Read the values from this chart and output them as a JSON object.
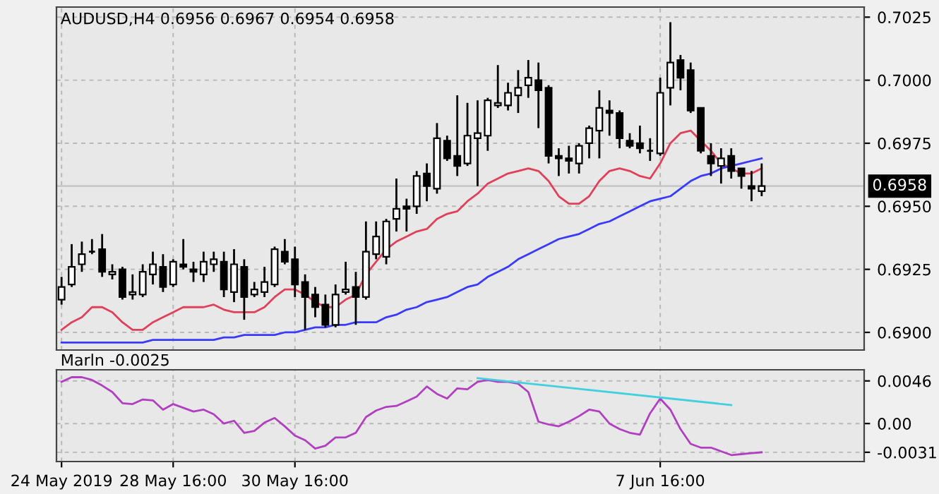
{
  "chart_data": [
    {
      "type": "candlestick",
      "title": "AUDUSD,H4 0.6956 0.6967 0.6954 0.6958",
      "categories": [
        null,
        null,
        null,
        null,
        null,
        null,
        null,
        null,
        null,
        null,
        null,
        null,
        null,
        null,
        null,
        null,
        null,
        null,
        null,
        null,
        null,
        null,
        null,
        null,
        null,
        null,
        null,
        null,
        null,
        null,
        null,
        null,
        null,
        null,
        null,
        null,
        null,
        null,
        null,
        null,
        null,
        null,
        null,
        null,
        null,
        null,
        null,
        null,
        null,
        null,
        null,
        null,
        null,
        null,
        null,
        null,
        null,
        null,
        null,
        null,
        null,
        null,
        null,
        null,
        null,
        null,
        null,
        null,
        null,
        null
      ],
      "ohlc": [
        [
          0.6913,
          0.6922,
          0.6911,
          0.6918
        ],
        [
          0.6919,
          0.6935,
          0.6918,
          0.6926
        ],
        [
          0.6927,
          0.6936,
          0.6924,
          0.6931
        ],
        [
          0.6932,
          0.6937,
          0.6931,
          0.6932
        ],
        [
          0.6933,
          0.6939,
          0.6922,
          0.6924
        ],
        [
          0.6923,
          0.6927,
          0.6921,
          0.6924
        ],
        [
          0.6925,
          0.6926,
          0.6913,
          0.6914
        ],
        [
          0.6915,
          0.6923,
          0.6913,
          0.6916
        ],
        [
          0.6915,
          0.6927,
          0.6914,
          0.6924
        ],
        [
          0.6923,
          0.6932,
          0.6919,
          0.6927
        ],
        [
          0.6926,
          0.6931,
          0.6916,
          0.6918
        ],
        [
          0.6919,
          0.6929,
          0.6918,
          0.6928
        ],
        [
          0.6927,
          0.6937,
          0.6925,
          0.6926
        ],
        [
          0.6925,
          0.6928,
          0.692,
          0.6924
        ],
        [
          0.6923,
          0.6932,
          0.692,
          0.6928
        ],
        [
          0.6927,
          0.6932,
          0.6924,
          0.6929
        ],
        [
          0.6928,
          0.6932,
          0.6914,
          0.6917
        ],
        [
          0.6916,
          0.6933,
          0.6912,
          0.6927
        ],
        [
          0.6926,
          0.6929,
          0.6905,
          0.6914
        ],
        [
          0.6915,
          0.692,
          0.6914,
          0.6917
        ],
        [
          0.6916,
          0.6926,
          0.6914,
          0.692
        ],
        [
          0.6919,
          0.6934,
          0.6918,
          0.6933
        ],
        [
          0.6932,
          0.6937,
          0.6927,
          0.6928
        ],
        [
          0.6929,
          0.6934,
          0.6914,
          0.6919
        ],
        [
          0.692,
          0.6923,
          0.6901,
          0.6914
        ],
        [
          0.6915,
          0.6918,
          0.6906,
          0.691
        ],
        [
          0.6911,
          0.6915,
          0.6902,
          0.6903
        ],
        [
          0.6903,
          0.6919,
          0.6902,
          0.6915
        ],
        [
          0.6916,
          0.6928,
          0.6915,
          0.6917
        ],
        [
          0.6918,
          0.6924,
          0.6903,
          0.6914
        ],
        [
          0.6914,
          0.6944,
          0.6913,
          0.6932
        ],
        [
          0.6931,
          0.6944,
          0.6929,
          0.6938
        ],
        [
          0.693,
          0.6945,
          0.6927,
          0.6944
        ],
        [
          0.6945,
          0.6961,
          0.694,
          0.6949
        ],
        [
          0.695,
          0.6953,
          0.694,
          0.6949
        ],
        [
          0.695,
          0.6964,
          0.6947,
          0.6962
        ],
        [
          0.6963,
          0.6967,
          0.6952,
          0.6958
        ],
        [
          0.6957,
          0.6983,
          0.6955,
          0.6977
        ],
        [
          0.6976,
          0.6978,
          0.6968,
          0.6969
        ],
        [
          0.697,
          0.6994,
          0.6962,
          0.6966
        ],
        [
          0.6967,
          0.6991,
          0.6966,
          0.6978
        ],
        [
          0.6977,
          0.6992,
          0.6958,
          0.6979
        ],
        [
          0.6978,
          0.6993,
          0.6972,
          0.6992
        ],
        [
          0.699,
          0.7006,
          0.6989,
          0.6991
        ],
        [
          0.699,
          0.6999,
          0.6988,
          0.6995
        ],
        [
          0.6994,
          0.7004,
          0.6987,
          0.6997
        ],
        [
          0.6998,
          0.7008,
          0.6993,
          0.7001
        ],
        [
          0.7,
          0.7007,
          0.6981,
          0.6996
        ],
        [
          0.6997,
          0.6998,
          0.6967,
          0.697
        ],
        [
          0.697,
          0.6973,
          0.6962,
          0.6969
        ],
        [
          0.6969,
          0.6974,
          0.6963,
          0.6968
        ],
        [
          0.6967,
          0.6975,
          0.6963,
          0.6974
        ],
        [
          0.6975,
          0.6982,
          0.6969,
          0.6981
        ],
        [
          0.698,
          0.6996,
          0.6969,
          0.6989
        ],
        [
          0.6988,
          0.6992,
          0.6978,
          0.6987
        ],
        [
          0.6987,
          0.6988,
          0.6973,
          0.6977
        ],
        [
          0.6976,
          0.6979,
          0.6973,
          0.6974
        ],
        [
          0.6975,
          0.6982,
          0.6971,
          0.6973
        ],
        [
          0.6972,
          0.6977,
          0.6968,
          0.6972
        ],
        [
          0.6971,
          0.7001,
          0.697,
          0.6995
        ],
        [
          0.6997,
          0.7023,
          0.699,
          0.7007
        ],
        [
          0.7008,
          0.701,
          0.6996,
          0.7001
        ],
        [
          0.7004,
          0.7007,
          0.6987,
          0.6988
        ],
        [
          0.6989,
          0.6989,
          0.6971,
          0.6972
        ],
        [
          0.697,
          0.6975,
          0.6962,
          0.6967
        ],
        [
          0.6966,
          0.6973,
          0.6959,
          0.6969
        ],
        [
          0.697,
          0.6973,
          0.6961,
          0.6964
        ],
        [
          0.6965,
          0.6965,
          0.6957,
          0.6962
        ],
        [
          0.6958,
          0.6964,
          0.6952,
          0.6957
        ],
        [
          0.6956,
          0.6967,
          0.6954,
          0.6958
        ]
      ],
      "series": [
        {
          "type": "line",
          "color": "#e0405a",
          "values": [
            0.6901,
            0.6904,
            0.6906,
            0.691,
            0.691,
            0.6908,
            0.6904,
            0.6901,
            0.6901,
            0.6904,
            0.6906,
            0.6908,
            0.691,
            0.691,
            0.691,
            0.6911,
            0.6909,
            0.6908,
            0.6908,
            0.6908,
            0.691,
            0.6914,
            0.6917,
            0.6917,
            0.6915,
            0.6912,
            0.691,
            0.691,
            0.6913,
            0.6915,
            0.6923,
            0.6928,
            0.6933,
            0.6936,
            0.6938,
            0.694,
            0.6941,
            0.6945,
            0.6947,
            0.6948,
            0.6952,
            0.6955,
            0.6959,
            0.6961,
            0.6963,
            0.6964,
            0.6965,
            0.6964,
            0.696,
            0.6954,
            0.6951,
            0.6951,
            0.6954,
            0.696,
            0.6964,
            0.6965,
            0.6964,
            0.6962,
            0.6961,
            0.6967,
            0.6975,
            0.6979,
            0.698,
            0.6976,
            0.6972,
            0.6967,
            0.6965,
            0.6963,
            0.6963,
            0.6965
          ]
        },
        {
          "type": "line",
          "color": "#3a3aff",
          "values": [
            0.6896,
            0.6896,
            0.6896,
            0.6896,
            0.6896,
            0.6896,
            0.6896,
            0.6896,
            0.6896,
            0.6897,
            0.6897,
            0.6897,
            0.6897,
            0.6897,
            0.6897,
            0.6897,
            0.6898,
            0.6898,
            0.6899,
            0.6899,
            0.6899,
            0.6899,
            0.69,
            0.69,
            0.6901,
            0.6902,
            0.6902,
            0.6903,
            0.6903,
            0.6904,
            0.6904,
            0.6904,
            0.6906,
            0.6907,
            0.6909,
            0.691,
            0.6912,
            0.6913,
            0.6914,
            0.6916,
            0.6918,
            0.6919,
            0.6922,
            0.6924,
            0.6926,
            0.6929,
            0.6931,
            0.6933,
            0.6935,
            0.6937,
            0.6938,
            0.6939,
            0.6941,
            0.6943,
            0.6944,
            0.6946,
            0.6948,
            0.695,
            0.6952,
            0.6953,
            0.6954,
            0.6957,
            0.696,
            0.6962,
            0.6963,
            0.6965,
            0.6966,
            0.6967,
            0.6968,
            0.6969
          ]
        }
      ],
      "ref_lines": [
        {
          "axis": "y",
          "value": 0.6958,
          "label": "0.6958",
          "color": "#c8c8c8"
        }
      ],
      "ylim": [
        0.6893,
        0.7029
      ],
      "yticks": [
        {
          "value": 0.69,
          "label": "0.6900"
        },
        {
          "value": 0.6925,
          "label": "0.6925"
        },
        {
          "value": 0.695,
          "label": "0.6950"
        },
        {
          "value": 0.6975,
          "label": "0.6975"
        },
        {
          "value": 0.7,
          "label": "0.7000"
        },
        {
          "value": 0.7025,
          "label": "0.7025"
        }
      ],
      "grid": true,
      "tick_labels": "y"
    },
    {
      "type": "line",
      "title": "Marln -0.0025",
      "categories": [
        "24 May 2019",
        null,
        null,
        null,
        null,
        null,
        null,
        null,
        null,
        null,
        null,
        "28 May 16:00",
        null,
        null,
        null,
        null,
        null,
        null,
        null,
        null,
        null,
        null,
        null,
        "30 May 16:00",
        null,
        null,
        null,
        null,
        null,
        null,
        null,
        null,
        null,
        null,
        null,
        null,
        null,
        null,
        null,
        null,
        null,
        null,
        null,
        null,
        null,
        null,
        null,
        null,
        null,
        null,
        null,
        null,
        null,
        null,
        null,
        null,
        null,
        null,
        null,
        "7 Jun 16:00",
        null,
        null,
        null,
        null,
        null,
        null,
        null,
        null,
        null,
        null
      ],
      "series": [
        {
          "color": "#b040c0",
          "values": [
            0.0045,
            0.005,
            0.005,
            0.0047,
            0.0041,
            0.0034,
            0.0022,
            0.0021,
            0.0026,
            0.0025,
            0.0015,
            0.0021,
            0.0017,
            0.0013,
            0.0015,
            0.001,
            0.0,
            0.0003,
            -0.001,
            -0.0008,
            0.0001,
            0.0006,
            -0.0003,
            -0.0013,
            -0.0018,
            -0.0027,
            -0.0024,
            -0.0015,
            -0.0015,
            -0.001,
            0.0007,
            0.0014,
            0.0018,
            0.0019,
            0.0024,
            0.0029,
            0.004,
            0.0032,
            0.0027,
            0.0038,
            0.0037,
            0.0045,
            0.0047,
            0.0045,
            0.0045,
            0.0043,
            0.0034,
            0.0002,
            -0.0001,
            -0.0003,
            0.0002,
            0.0008,
            0.0015,
            0.0013,
            0.0,
            -0.0006,
            -0.001,
            -0.0012,
            0.0011,
            0.0027,
            0.0015,
            -0.0006,
            -0.0022,
            -0.0026,
            -0.0026,
            -0.003,
            -0.0034,
            -0.0033,
            -0.0032,
            -0.0031
          ]
        },
        {
          "color": "#40d0e0",
          "values": [
            null,
            null,
            null,
            null,
            null,
            null,
            null,
            null,
            null,
            null,
            null,
            null,
            null,
            null,
            null,
            null,
            null,
            null,
            null,
            null,
            null,
            null,
            null,
            null,
            null,
            null,
            null,
            null,
            null,
            null,
            null,
            null,
            null,
            null,
            null,
            null,
            null,
            null,
            null,
            null,
            null,
            0.0049,
            null,
            null,
            null,
            null,
            null,
            null,
            null,
            null,
            null,
            null,
            null,
            null,
            null,
            null,
            null,
            null,
            null,
            null,
            null,
            null,
            null,
            null,
            null,
            null,
            0.002,
            null,
            null,
            null
          ]
        }
      ],
      "ylim": [
        -0.0041,
        0.0058
      ],
      "yticks": [
        0.0046,
        {
          "value": 0,
          "label": "0.00"
        },
        -0.0031
      ],
      "grid": true
    }
  ]
}
